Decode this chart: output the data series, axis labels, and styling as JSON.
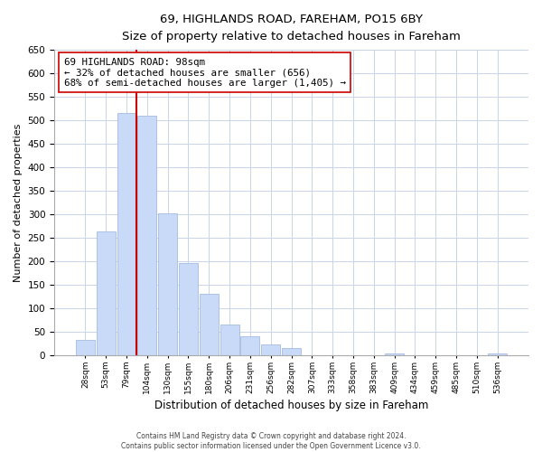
{
  "title": "69, HIGHLANDS ROAD, FAREHAM, PO15 6BY",
  "subtitle": "Size of property relative to detached houses in Fareham",
  "xlabel": "Distribution of detached houses by size in Fareham",
  "ylabel": "Number of detached properties",
  "bar_labels": [
    "28sqm",
    "53sqm",
    "79sqm",
    "104sqm",
    "130sqm",
    "155sqm",
    "180sqm",
    "206sqm",
    "231sqm",
    "256sqm",
    "282sqm",
    "307sqm",
    "333sqm",
    "358sqm",
    "383sqm",
    "409sqm",
    "434sqm",
    "459sqm",
    "485sqm",
    "510sqm",
    "536sqm"
  ],
  "bar_values": [
    33,
    263,
    515,
    510,
    302,
    196,
    131,
    65,
    40,
    23,
    15,
    0,
    0,
    0,
    0,
    5,
    0,
    0,
    0,
    0,
    5
  ],
  "bar_color": "#c9daf8",
  "bar_edge_color": "#a4bce0",
  "vline_x": 2.5,
  "vline_color": "#cc0000",
  "annotation_line1": "69 HIGHLANDS ROAD: 98sqm",
  "annotation_line2": "← 32% of detached houses are smaller (656)",
  "annotation_line3": "68% of semi-detached houses are larger (1,405) →",
  "annotation_box_color": "#ffffff",
  "annotation_box_edge": "#cc0000",
  "ylim": [
    0,
    650
  ],
  "yticks": [
    0,
    50,
    100,
    150,
    200,
    250,
    300,
    350,
    400,
    450,
    500,
    550,
    600,
    650
  ],
  "footer_line1": "Contains HM Land Registry data © Crown copyright and database right 2024.",
  "footer_line2": "Contains public sector information licensed under the Open Government Licence v3.0.",
  "background_color": "#ffffff",
  "grid_color": "#c8d4e8"
}
